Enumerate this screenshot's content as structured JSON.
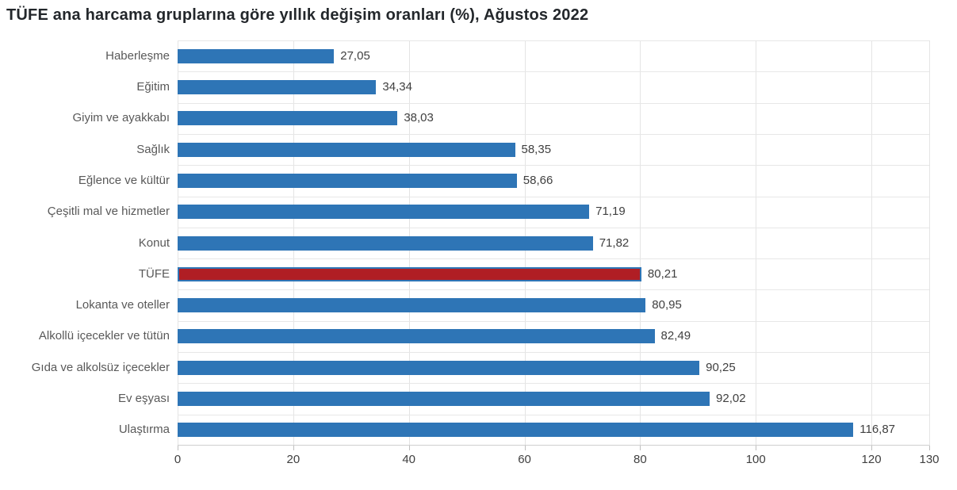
{
  "title": "TÜFE ana harcama gruplarına göre yıllık değişim oranları (%), Ağustos 2022",
  "colors": {
    "bar_blue": "#2e75b6",
    "highlight_red": "#b01e24",
    "highlight_border_blue": "#2e75b6",
    "gridline": "#e4e4e4",
    "axis_line": "#cfcfcf",
    "title_text": "#23272b",
    "category_text": "#595959",
    "value_text": "#404040"
  },
  "chart_data": {
    "type": "bar",
    "orientation": "horizontal",
    "title": "TÜFE ana harcama gruplarına göre yıllık değişim oranları (%), Ağustos 2022",
    "xlabel": "",
    "ylabel": "",
    "xlim": [
      0,
      130
    ],
    "xticks": [
      0,
      20,
      40,
      60,
      80,
      100,
      120,
      130
    ],
    "grid": true,
    "legend": "none",
    "categories": [
      "Haberleşme",
      "Eğitim",
      "Giyim ve ayakkabı",
      "Sağlık",
      "Eğlence ve kültür",
      "Çeşitli mal ve hizmetler",
      "Konut",
      "TÜFE",
      "Lokanta ve oteller",
      "Alkollü içecekler ve tütün",
      "Gıda ve alkolsüz içecekler",
      "Ev eşyası",
      "Ulaştırma"
    ],
    "values": [
      27.05,
      34.34,
      38.03,
      58.35,
      58.66,
      71.19,
      71.82,
      80.21,
      80.95,
      82.49,
      90.25,
      92.02,
      116.87
    ],
    "value_labels": [
      "27,05",
      "34,34",
      "38,03",
      "58,35",
      "58,66",
      "71,19",
      "71,82",
      "80,21",
      "80,95",
      "82,49",
      "90,25",
      "92,02",
      "116,87"
    ],
    "highlight_category": "TÜFE",
    "highlight_index": 7
  }
}
